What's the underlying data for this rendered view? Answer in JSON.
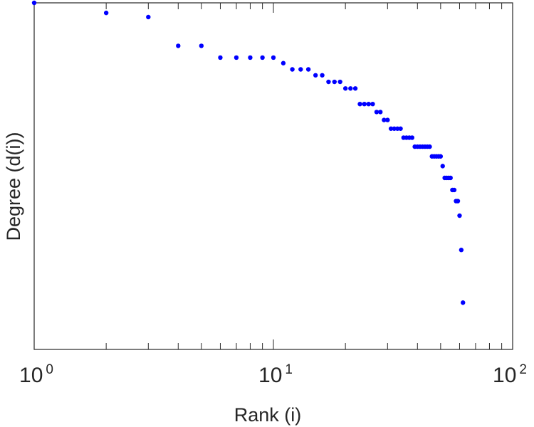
{
  "chart_data": {
    "type": "scatter",
    "title": "",
    "xlabel": "Rank (i)",
    "ylabel": "Degree (d(i))",
    "x_scale": "log",
    "y_scale": "log",
    "xlim": [
      1,
      100
    ],
    "x_tick_labels": [
      {
        "base": "10",
        "exp": "0"
      },
      {
        "base": "10",
        "exp": "1"
      },
      {
        "base": "10",
        "exp": "2"
      }
    ],
    "y_tick_labels": [],
    "grid": false,
    "legend": "none",
    "marker_color": "#0000ff",
    "axis_color": "#262626",
    "series": [
      {
        "x": [
          1,
          2,
          3,
          4,
          5,
          6,
          7,
          8,
          9,
          10,
          11,
          12,
          13,
          14,
          15,
          16,
          17,
          18,
          19,
          20,
          21,
          22,
          23,
          24,
          25,
          26,
          27,
          28,
          29,
          30,
          31,
          32,
          33,
          34,
          35,
          36,
          37,
          38,
          39,
          40,
          41,
          42,
          43,
          44,
          45,
          46,
          47,
          48,
          49,
          50,
          51,
          52,
          53,
          54,
          55,
          56,
          57,
          58,
          59,
          60,
          61,
          62
        ],
        "y": [
          1.0,
          0.971,
          0.959,
          0.876,
          0.876,
          0.842,
          0.842,
          0.842,
          0.842,
          0.842,
          0.826,
          0.808,
          0.808,
          0.808,
          0.791,
          0.791,
          0.772,
          0.772,
          0.772,
          0.753,
          0.753,
          0.753,
          0.708,
          0.708,
          0.708,
          0.708,
          0.685,
          0.685,
          0.662,
          0.662,
          0.637,
          0.637,
          0.637,
          0.637,
          0.611,
          0.611,
          0.611,
          0.611,
          0.585,
          0.585,
          0.585,
          0.585,
          0.585,
          0.585,
          0.585,
          0.557,
          0.557,
          0.557,
          0.557,
          0.557,
          0.529,
          0.495,
          0.495,
          0.495,
          0.495,
          0.46,
          0.46,
          0.428,
          0.428,
          0.386,
          0.287,
          0.135
        ]
      }
    ]
  }
}
